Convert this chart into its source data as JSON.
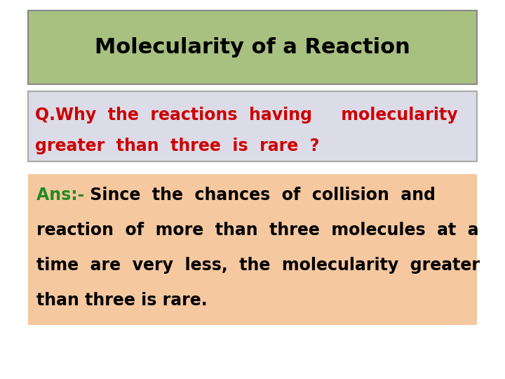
{
  "title": "Molecularity of a Reaction",
  "title_bg": "#a8c080",
  "title_color": "#000000",
  "title_fontsize": 22,
  "question_line1": "Q.Why  the  reactions  having     molecularity",
  "question_line2": "greater  than  three  is  rare  ?",
  "question_color": "#cc0000",
  "question_bg": "#dcdce8",
  "question_border": "#aaaaaa",
  "question_fontsize": 17,
  "ans_label": "Ans:- ",
  "ans_label_color": "#228b22",
  "ans_line1": " Since  the  chances  of  collision  and",
  "ans_line2": "reaction  of  more  than  three  molecules  at  a",
  "ans_line3": "time  are  very  less,  the  molecularity  greater",
  "ans_line4": "than three is rare.",
  "ans_color": "#000000",
  "ans_bg": "#f5c8a0",
  "ans_fontsize": 17,
  "fig_bg": "#ffffff",
  "fig_width": 7.2,
  "fig_height": 5.4,
  "dpi": 100
}
